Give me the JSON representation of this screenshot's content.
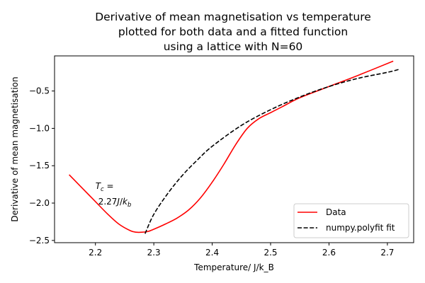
{
  "chart_data": {
    "type": "line",
    "title_lines": [
      "Derivative of mean magnetisation vs temperature",
      "plotted for both data and a fitted function",
      "using a lattice with N=60"
    ],
    "xlabel": "Temperature/ J/k_B",
    "ylabel": "Derivative of mean magnetisation",
    "xlim": [
      2.13,
      2.745
    ],
    "ylim": [
      -2.53,
      -0.03
    ],
    "xticks": [
      2.2,
      2.3,
      2.4,
      2.5,
      2.6,
      2.7
    ],
    "xtick_labels": [
      "2.2",
      "2.3",
      "2.4",
      "2.5",
      "2.6",
      "2.7"
    ],
    "yticks": [
      -2.5,
      -2.0,
      -1.5,
      -1.0,
      -0.5
    ],
    "ytick_labels": [
      "−2.5",
      "−2.0",
      "−1.5",
      "−1.0",
      "−0.5"
    ],
    "grid": false,
    "legend_position": "lower-right",
    "annotation": {
      "line1": "T_c =",
      "line2": "2.27J/k_b",
      "x": 2.2,
      "y": -1.86
    },
    "series": [
      {
        "name": "Data",
        "color": "#ff0000",
        "style": "solid",
        "x": [
          2.155,
          2.18,
          2.2,
          2.22,
          2.24,
          2.26,
          2.27,
          2.28,
          2.29,
          2.3,
          2.32,
          2.34,
          2.36,
          2.38,
          2.4,
          2.42,
          2.44,
          2.46,
          2.48,
          2.5,
          2.52,
          2.55,
          2.6,
          2.65,
          2.71
        ],
        "y": [
          -1.62,
          -1.82,
          -1.98,
          -2.14,
          -2.28,
          -2.37,
          -2.39,
          -2.39,
          -2.38,
          -2.35,
          -2.28,
          -2.2,
          -2.09,
          -1.93,
          -1.72,
          -1.48,
          -1.22,
          -1.0,
          -0.87,
          -0.79,
          -0.71,
          -0.59,
          -0.44,
          -0.29,
          -0.1
        ]
      },
      {
        "name": "numpy.polyfit fit",
        "color": "#000000",
        "style": "dashed",
        "x": [
          2.285,
          2.3,
          2.325,
          2.35,
          2.375,
          2.4,
          2.45,
          2.5,
          2.55,
          2.6,
          2.65,
          2.7,
          2.72
        ],
        "y": [
          -2.41,
          -2.15,
          -1.86,
          -1.62,
          -1.42,
          -1.24,
          -0.96,
          -0.75,
          -0.58,
          -0.44,
          -0.33,
          -0.25,
          -0.21
        ]
      }
    ]
  }
}
